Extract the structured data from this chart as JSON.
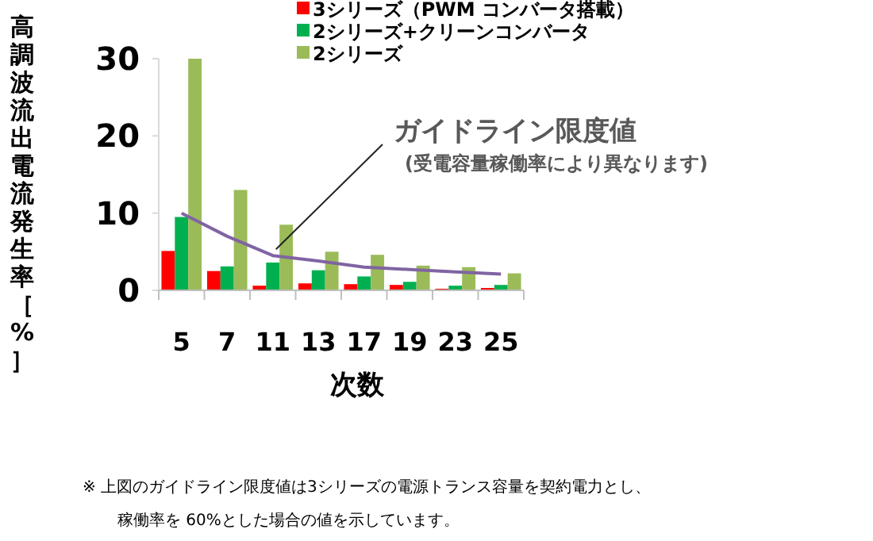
{
  "chart_data": {
    "type": "bar",
    "ylabel": "高調波流出電流発生率［%］",
    "xlabel": "次数",
    "categories": [
      "5",
      "7",
      "11",
      "13",
      "17",
      "19",
      "23",
      "25"
    ],
    "ylim": [
      0,
      30
    ],
    "yticks": [
      0,
      10,
      20,
      30
    ],
    "grid": false,
    "legend": "top",
    "series": [
      {
        "name": "3シリーズ（PWM コンバータ搭載）",
        "color": "#ff0000",
        "values": [
          5.1,
          2.5,
          0.6,
          0.9,
          0.8,
          0.7,
          0.2,
          0.3
        ]
      },
      {
        "name": "2シリーズ+クリーンコンバータ",
        "color": "#00b050",
        "values": [
          9.5,
          3.1,
          3.6,
          2.6,
          1.8,
          1.1,
          0.6,
          0.7
        ]
      },
      {
        "name": "2シリーズ",
        "color": "#9bbb59",
        "values": [
          30,
          13,
          8.5,
          5.0,
          4.6,
          3.2,
          3.0,
          2.2
        ]
      },
      {
        "type": "line",
        "color": "#8064a2",
        "values": [
          10,
          7,
          4.5,
          3.8,
          3.0,
          2.7,
          2.4,
          2.1
        ]
      }
    ],
    "annotations": [
      {
        "text": "ガイドライン限度値",
        "x": "11",
        "y": 4.5
      },
      "(受電容量稼働率により異なります)",
      "※ 上図のガイドライン限度値は3シリーズの電源トランス容量を契約電力とし、稼働率を 60%とした場合の値を示しています。"
    ]
  }
}
